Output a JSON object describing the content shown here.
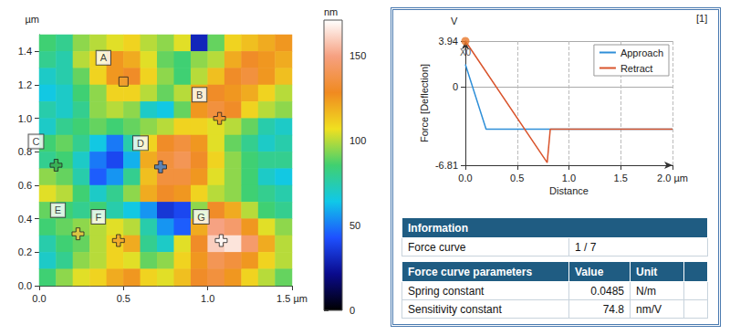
{
  "chart_data": [
    {
      "type": "heatmap",
      "xlim": [
        0,
        1.5
      ],
      "ylim": [
        0,
        1.5
      ],
      "xticks": [
        {
          "value": 0,
          "label": "0.0"
        },
        {
          "value": 0.5,
          "label": "0.5"
        },
        {
          "value": 1,
          "label": "1.0"
        },
        {
          "value": 1.5,
          "label": "1.5 µm"
        }
      ],
      "yticks": [
        {
          "value": 0,
          "label": "0.0"
        },
        0.2,
        0.4,
        0.6,
        0.8,
        {
          "value": 1,
          "label": "1.0"
        },
        1.2,
        1.4
      ],
      "ylabel": "µm",
      "cells": [
        [
          85,
          80,
          95,
          100,
          105,
          110,
          100,
          95,
          105,
          30,
          90,
          110,
          115,
          120,
          125
        ],
        [
          80,
          75,
          100,
          110,
          125,
          120,
          105,
          90,
          85,
          95,
          100,
          120,
          130,
          125,
          120
        ],
        [
          70,
          75,
          90,
          110,
          125,
          130,
          110,
          95,
          85,
          100,
          115,
          130,
          135,
          125,
          115
        ],
        [
          65,
          70,
          85,
          95,
          110,
          110,
          100,
          90,
          100,
          120,
          130,
          125,
          120,
          110,
          100
        ],
        [
          75,
          70,
          80,
          95,
          100,
          95,
          70,
          65,
          90,
          125,
          135,
          130,
          110,
          100,
          95
        ],
        [
          70,
          80,
          85,
          90,
          85,
          90,
          95,
          100,
          110,
          110,
          105,
          100,
          90,
          75,
          70
        ],
        [
          85,
          90,
          80,
          65,
          50,
          75,
          110,
          130,
          135,
          125,
          105,
          90,
          80,
          70,
          75
        ],
        [
          80,
          85,
          70,
          50,
          40,
          60,
          120,
          135,
          140,
          130,
          110,
          95,
          85,
          80,
          80
        ],
        [
          95,
          90,
          75,
          45,
          55,
          80,
          115,
          135,
          135,
          125,
          105,
          95,
          85,
          70,
          65
        ],
        [
          105,
          100,
          85,
          70,
          80,
          95,
          120,
          130,
          125,
          110,
          100,
          95,
          85,
          80,
          75
        ],
        [
          90,
          85,
          80,
          85,
          75,
          65,
          55,
          35,
          40,
          95,
          130,
          120,
          100,
          85,
          80
        ],
        [
          85,
          90,
          95,
          100,
          105,
          100,
          75,
          55,
          45,
          120,
          150,
          145,
          125,
          105,
          95
        ],
        [
          75,
          85,
          90,
          100,
          110,
          120,
          80,
          70,
          105,
          130,
          160,
          165,
          145,
          120,
          100
        ],
        [
          70,
          80,
          95,
          100,
          110,
          105,
          90,
          95,
          110,
          125,
          140,
          135,
          125,
          110,
          100
        ],
        [
          85,
          95,
          105,
          110,
          120,
          125,
          110,
          105,
          115,
          130,
          135,
          125,
          110,
          100,
          90
        ]
      ],
      "colorbar": {
        "label": "nm",
        "range": [
          0,
          171
        ],
        "ticks": [
          0,
          50,
          100,
          150
        ]
      },
      "points": [
        {
          "label": "A",
          "x": 0.5,
          "y": 1.22,
          "marker": "square",
          "color": "#f0a030"
        },
        {
          "label": "B",
          "x": 1.07,
          "y": 1.0,
          "marker": "cross",
          "color": "#f08a2a"
        },
        {
          "label": "C",
          "x": 0.1,
          "y": 0.72,
          "marker": "cross",
          "color": "#3aaa4a"
        },
        {
          "label": "D",
          "x": 0.72,
          "y": 0.71,
          "marker": "cross",
          "color": "#3a7fd0"
        },
        {
          "label": "E",
          "x": 0.23,
          "y": 0.31,
          "marker": "cross",
          "color": "#f0c040"
        },
        {
          "label": "F",
          "x": 0.47,
          "y": 0.27,
          "marker": "cross",
          "color": "#f0a030"
        },
        {
          "label": "G",
          "x": 1.08,
          "y": 0.27,
          "marker": "cross",
          "color": "#ffffff"
        }
      ]
    },
    {
      "type": "line",
      "title": "[1]",
      "xlabel": "Distance",
      "ylabel": "Force [Deflection]",
      "yunit": "V",
      "xlim": [
        0,
        2
      ],
      "ylim": [
        -6.81,
        3.94
      ],
      "xticks": [
        {
          "value": 0,
          "label": "0.0"
        },
        0.5,
        {
          "value": 1,
          "label": "1.0"
        },
        1.5,
        {
          "value": 2,
          "label": "2.0 µm"
        }
      ],
      "yticks": [
        -6.81,
        0,
        3.94
      ],
      "grid": true,
      "legend": "upper right",
      "series": [
        {
          "name": "Approach",
          "color": "#2f8fd8",
          "x": [
            0,
            0.2,
            2.0
          ],
          "values": [
            1.93,
            -3.68,
            -3.68
          ]
        },
        {
          "name": "Retract",
          "color": "#d9542c",
          "x": [
            0,
            0.79,
            0.82,
            2.0
          ],
          "values": [
            3.94,
            -6.58,
            -3.68,
            -3.68
          ]
        }
      ],
      "annotations": [
        {
          "text": "X0",
          "x": 0,
          "y": 3.94
        }
      ]
    }
  ],
  "table": {
    "information": {
      "header": "Information",
      "rows": [
        [
          "Force curve",
          "1 / 7"
        ]
      ]
    },
    "parameters": {
      "columns": [
        "Force curve parameters",
        "Value",
        "Unit"
      ],
      "rows": [
        [
          "Spring constant",
          0.0485,
          "N/m"
        ],
        [
          "Sensitivity constant",
          74.8,
          "nm/V"
        ]
      ]
    }
  }
}
